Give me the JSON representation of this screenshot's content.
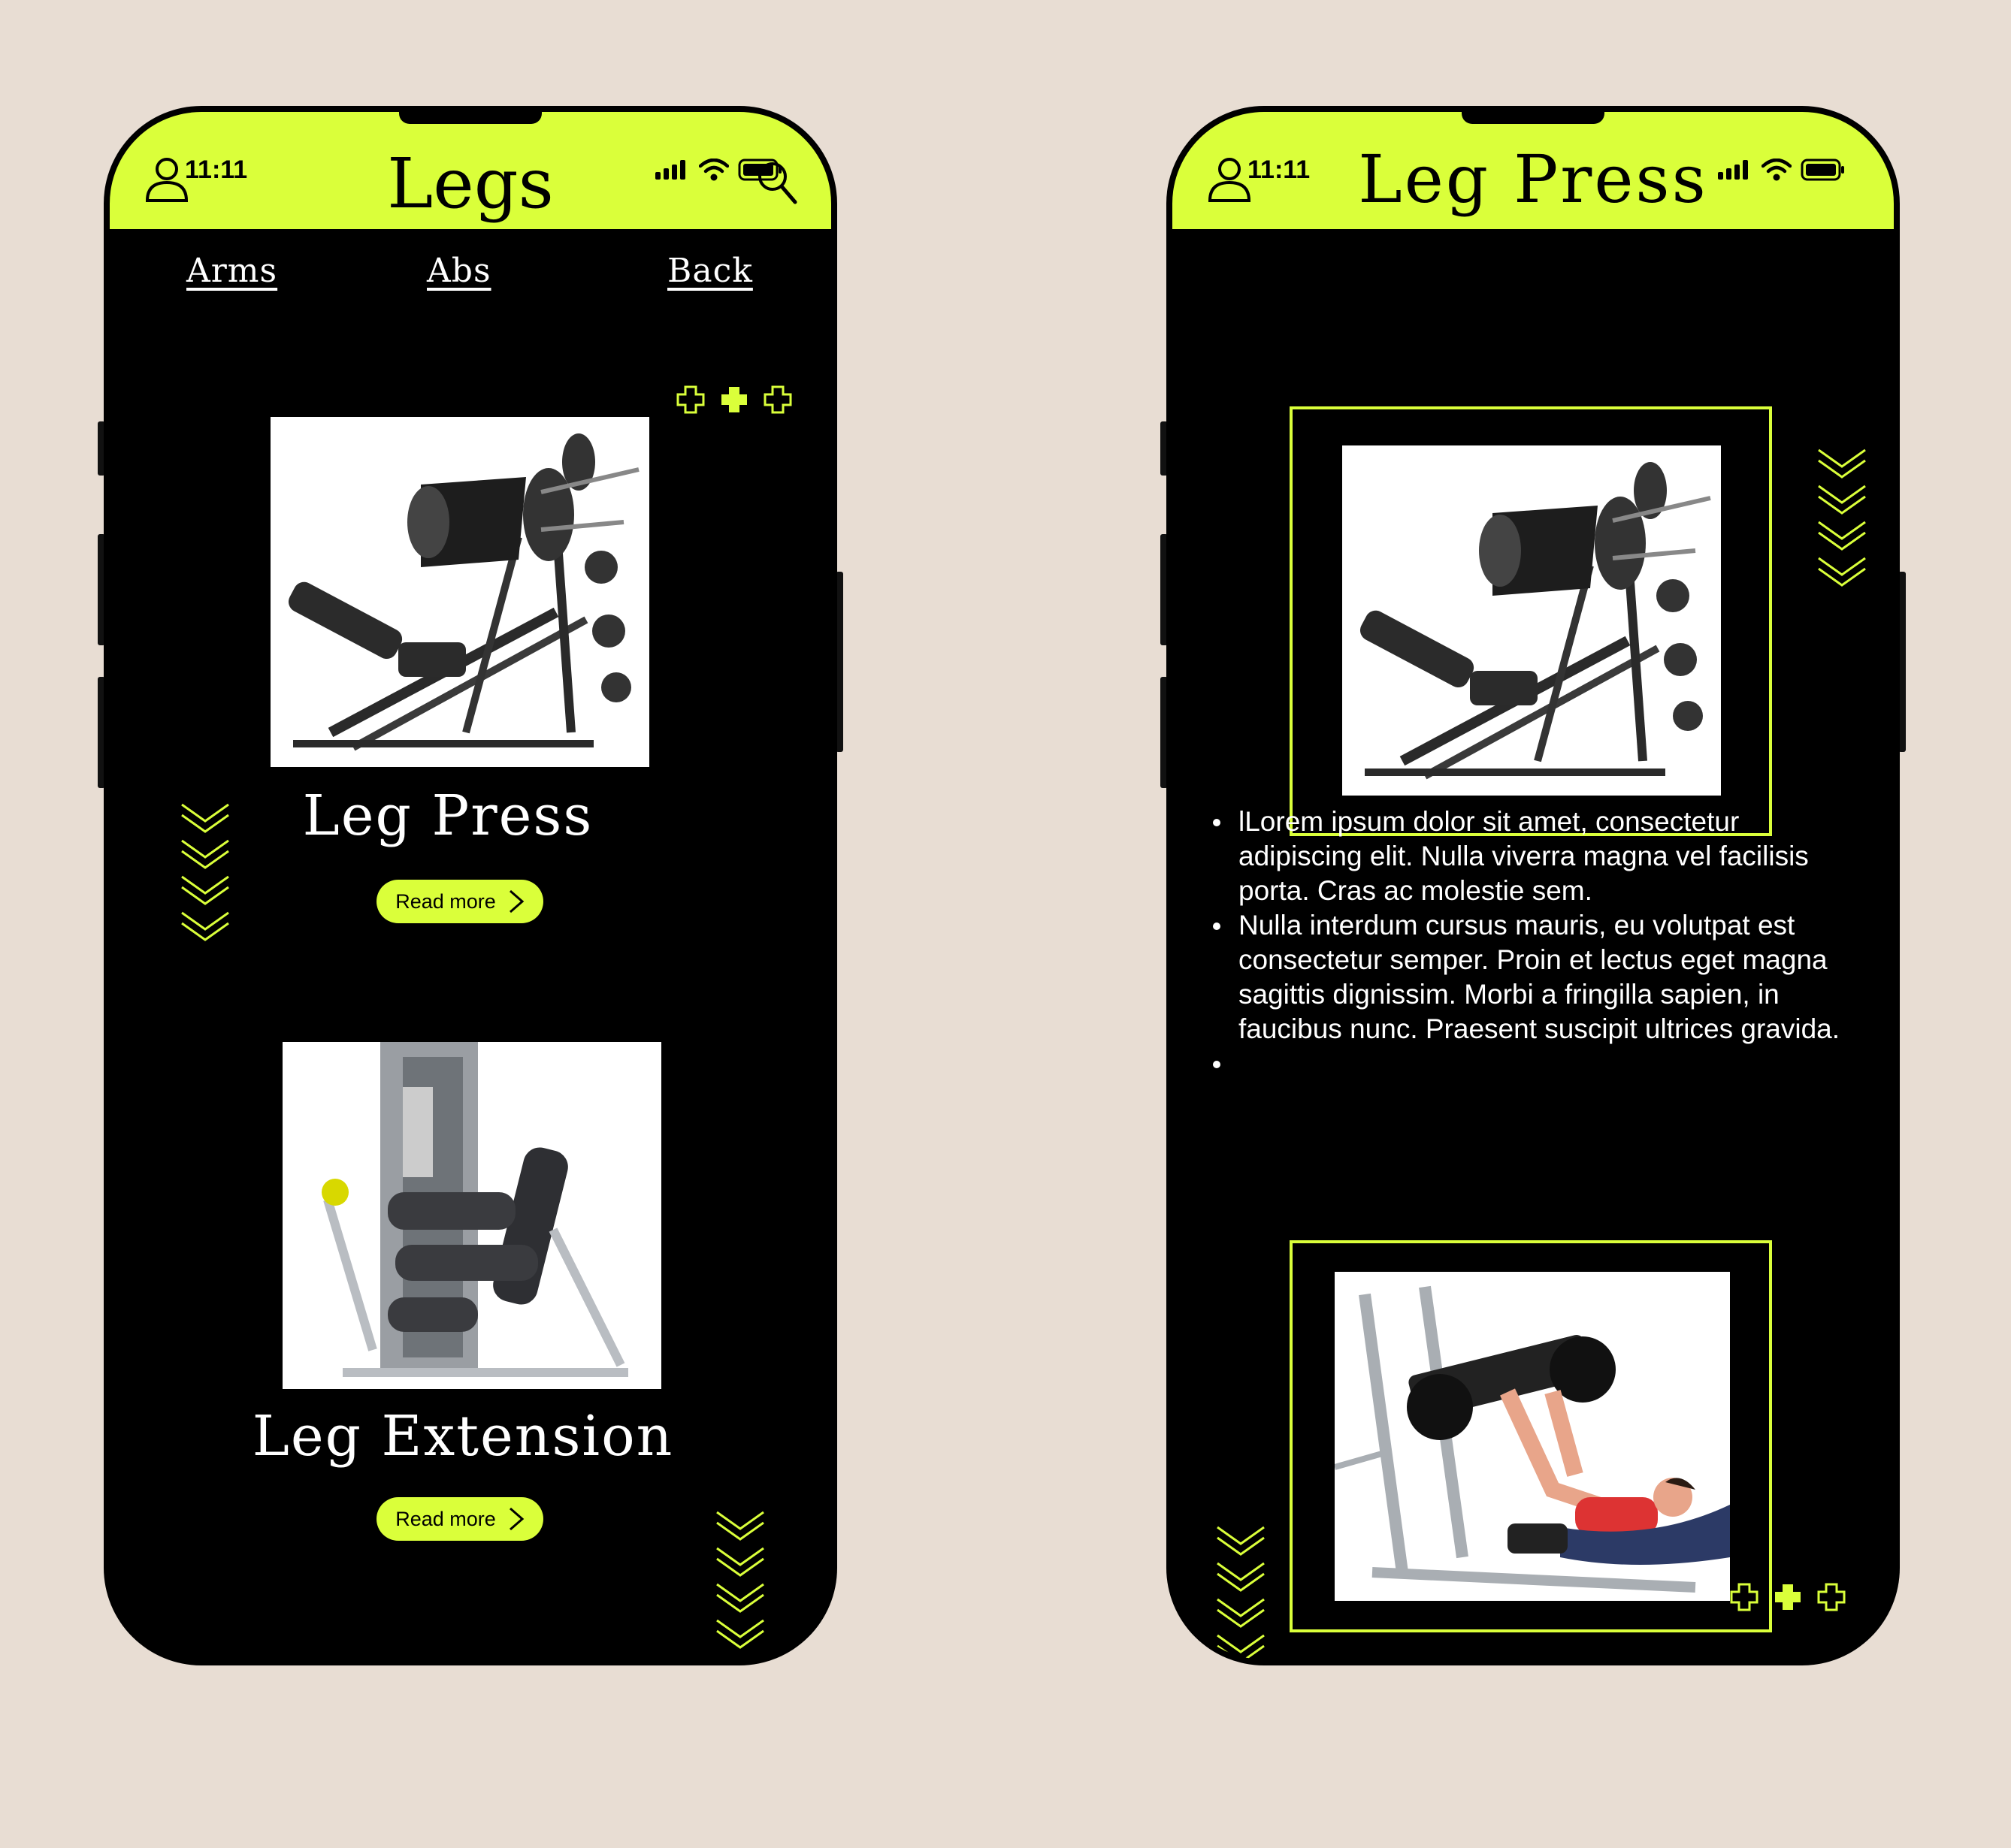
{
  "colors": {
    "accent": "#daff3a",
    "screen": "#000000",
    "background": "#e8ddd3"
  },
  "left_screen": {
    "status": {
      "time": "11:11"
    },
    "title": "Legs",
    "nav": {
      "arms": "Arms",
      "abs": "Abs",
      "back": "Back"
    },
    "products": [
      {
        "name": "Leg Press",
        "button": "Read more"
      },
      {
        "name": "Leg Extension",
        "button": "Read more"
      }
    ]
  },
  "right_screen": {
    "status": {
      "time": "11:11"
    },
    "title": "Leg Press",
    "bullets": [
      "lLorem ipsum dolor sit amet, consectetur adipiscing elit. Nulla viverra magna vel facilisis porta. Cras ac molestie sem.",
      "Nulla interdum cursus mauris, eu volutpat est consectetur semper. Proin et lectus eget magna sagittis dignissim. Morbi a fringilla sapien, in faucibus nunc. Praesent suscipit ultrices gravida.",
      ""
    ]
  },
  "icons": {
    "user": "user-icon",
    "search": "search-icon",
    "signal": "signal-icon",
    "wifi": "wifi-icon",
    "battery": "battery-icon",
    "chevron": "chevron-right-icon",
    "plus": "plus-icon",
    "chevrons_down": "chevrons-down-icon"
  }
}
